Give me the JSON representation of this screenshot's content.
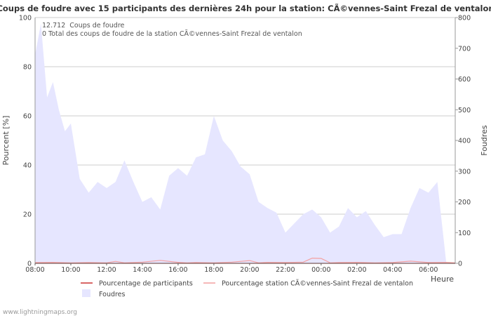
{
  "chart_data": {
    "type": "area",
    "title": "Coups de foudre avec 15 participants des dernières 24h pour la station: CÃ©vennes-Saint Frezal de ventalon",
    "xlabel": "Heure",
    "ylabel_left": "Pourcent   [%]",
    "ylabel_right": "Foudres",
    "annotations": [
      {
        "value": "12.712",
        "label": "Coups de foudre"
      },
      {
        "value": "0",
        "label": "Total des coups de foudre de la station CÃ©vennes-Saint Frezal de ventalon"
      }
    ],
    "x_tick_labels": [
      "08:00",
      "10:00",
      "12:00",
      "14:00",
      "16:00",
      "18:00",
      "20:00",
      "22:00",
      "00:00",
      "02:00",
      "04:00",
      "06:00"
    ],
    "x_hours_range": [
      0,
      23.5
    ],
    "ylim_left": [
      0,
      100
    ],
    "yticks_left": [
      0,
      20,
      40,
      60,
      80,
      100
    ],
    "ylim_right": [
      0,
      800
    ],
    "yticks_right": [
      0,
      100,
      200,
      300,
      400,
      500,
      600,
      700,
      800
    ],
    "grid": true,
    "series": [
      {
        "name": "Foudres",
        "axis": "right",
        "color": "#e6e6ff",
        "x": [
          0,
          0.33,
          0.67,
          1,
          1.33,
          1.67,
          2,
          2.5,
          3,
          3.5,
          4,
          4.5,
          5,
          5.5,
          6,
          6.5,
          7,
          7.5,
          8,
          8.5,
          9,
          9.5,
          10,
          10.5,
          11,
          11.5,
          12,
          12.5,
          13,
          13.5,
          14,
          14.5,
          15,
          15.5,
          16,
          16.5,
          17,
          17.5,
          18,
          18.5,
          19,
          19.5,
          20,
          20.5,
          21,
          21.5,
          22,
          22.5,
          23,
          23.5
        ],
        "values": [
          680,
          780,
          540,
          590,
          500,
          430,
          455,
          275,
          230,
          265,
          245,
          265,
          335,
          265,
          200,
          215,
          175,
          285,
          310,
          285,
          345,
          355,
          480,
          400,
          365,
          315,
          290,
          200,
          180,
          165,
          100,
          130,
          160,
          175,
          150,
          100,
          120,
          180,
          150,
          170,
          125,
          85,
          95,
          95,
          180,
          245,
          230,
          265,
          0,
          0
        ]
      },
      {
        "name": "Pourcentage de participants",
        "axis": "left",
        "color": "#cc3333",
        "x": [
          0,
          1,
          2,
          3,
          4,
          5,
          6,
          7,
          8,
          9,
          10,
          11,
          12,
          12.5,
          13,
          14,
          15,
          16,
          17,
          18,
          19,
          20,
          21,
          22,
          23,
          23.5
        ],
        "values": [
          0,
          0,
          0,
          0,
          0,
          0,
          0,
          0,
          0,
          0,
          0,
          0,
          0,
          0,
          0,
          0,
          0,
          0,
          0,
          0,
          0,
          0,
          0,
          0,
          0,
          0
        ]
      },
      {
        "name": "Pourcentage station CÃ©vennes-Saint Frezal de ventalon",
        "axis": "left",
        "color": "#f4a0a0",
        "x": [
          0,
          1,
          2,
          3,
          4,
          4.5,
          5,
          6,
          7,
          8,
          8.5,
          9,
          10,
          11,
          12,
          12.5,
          13,
          14,
          15,
          15.5,
          16,
          16.5,
          17,
          18,
          19,
          20,
          21,
          22,
          23,
          23.5
        ],
        "values": [
          0.3,
          0.4,
          0.2,
          0.3,
          0.2,
          0.8,
          0.2,
          0.5,
          1.2,
          0.4,
          0.2,
          0.3,
          0.2,
          0.5,
          1.1,
          0.2,
          0.4,
          0.3,
          0.5,
          2.1,
          2.0,
          0.2,
          0.3,
          0.4,
          0.2,
          0.3,
          0.9,
          0.3,
          0.4,
          0.2
        ]
      }
    ],
    "legend": [
      {
        "label": "Pourcentage de participants",
        "color": "#cc3333",
        "kind": "line"
      },
      {
        "label": "Pourcentage station CÃ©vennes-Saint Frezal de ventalon",
        "color": "#f4a0a0",
        "kind": "line"
      },
      {
        "label": "Foudres",
        "color": "#e6e6ff",
        "kind": "area"
      }
    ]
  },
  "footer": {
    "credit": "www.lightningmaps.org"
  }
}
